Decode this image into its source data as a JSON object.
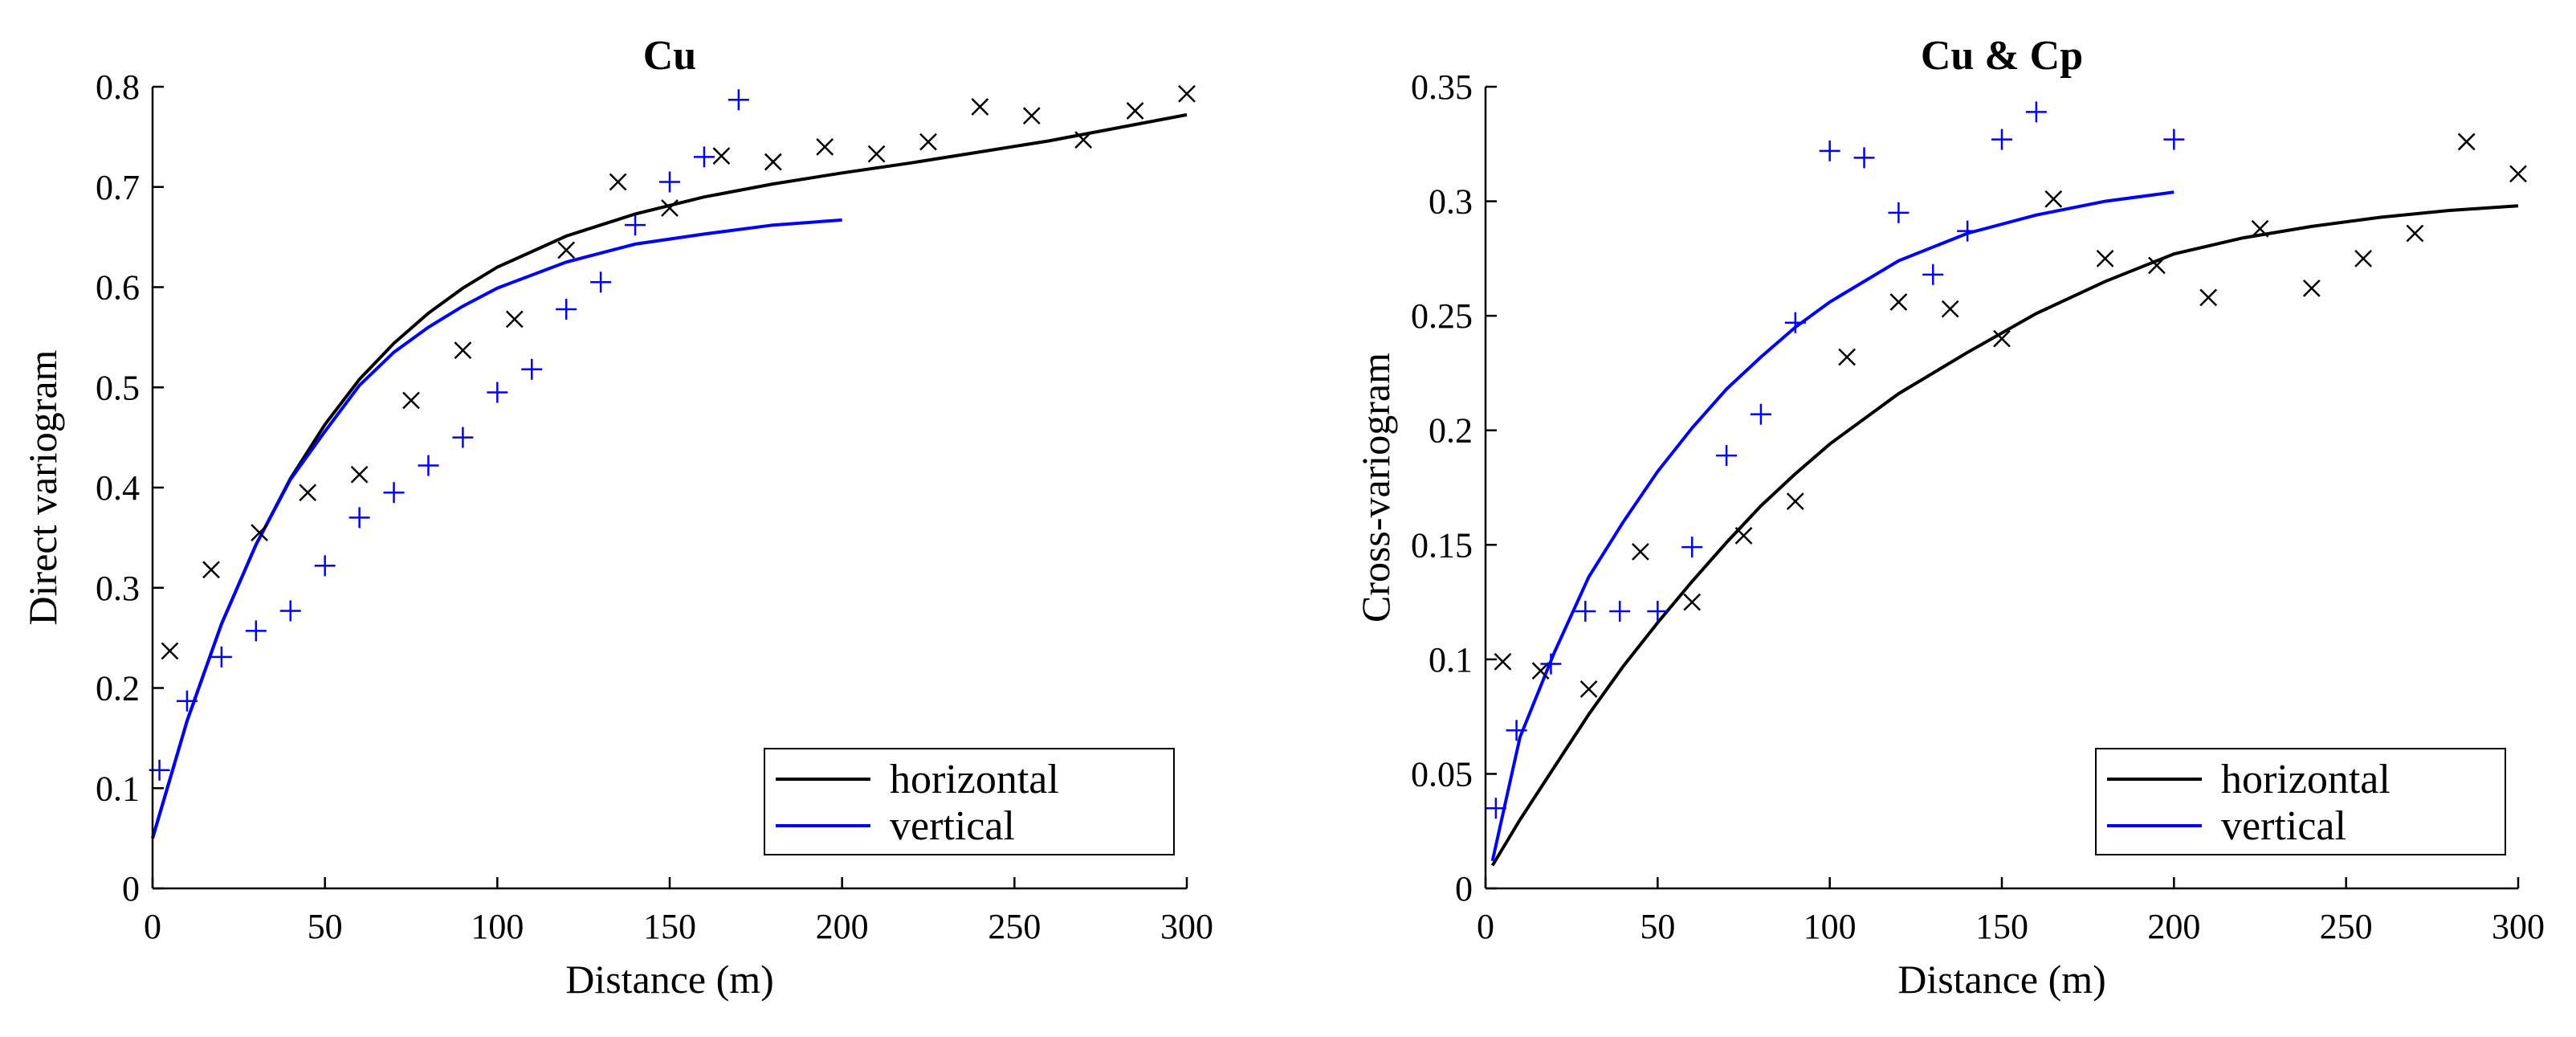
{
  "chart_data": [
    {
      "type": "scatter",
      "title": "Cu",
      "xlabel": "Distance (m)",
      "ylabel": "Direct variogram",
      "xlim": [
        0,
        300
      ],
      "ylim": [
        0,
        0.8
      ],
      "xticks": [
        0,
        50,
        100,
        150,
        200,
        250,
        300
      ],
      "xtick_labels": [
        "0",
        "50",
        "100",
        "150",
        "200",
        "250",
        "300"
      ],
      "yticks": [
        0,
        0.1,
        0.2,
        0.3,
        0.4,
        0.5,
        0.6,
        0.7,
        0.8
      ],
      "ytick_labels": [
        "0",
        "0.1",
        "0.2",
        "0.3",
        "0.4",
        "0.5",
        "0.6",
        "0.7",
        "0.8"
      ],
      "grid": false,
      "legend_position": "bottom-right",
      "colors": {
        "horizontal": "#000000",
        "vertical": "#0000ff"
      },
      "series": [
        {
          "name": "horizontal",
          "kind": "experimental",
          "marker": "x",
          "x": [
            5,
            17,
            31,
            45,
            60,
            75,
            90,
            105,
            120,
            135,
            150,
            165,
            180,
            195,
            210,
            225,
            240,
            255,
            270,
            285,
            300
          ],
          "y": [
            0.237,
            0.318,
            0.355,
            0.395,
            0.413,
            0.487,
            0.537,
            0.568,
            0.637,
            0.705,
            0.679,
            0.731,
            0.725,
            0.74,
            0.733,
            0.745,
            0.78,
            0.771,
            0.747,
            0.776,
            0.793
          ]
        },
        {
          "name": "vertical",
          "kind": "experimental",
          "marker": "+",
          "x": [
            2,
            10,
            20,
            30,
            40,
            50,
            60,
            70,
            80,
            90,
            100,
            110,
            120,
            130,
            140,
            150,
            160,
            170
          ],
          "y": [
            0.118,
            0.187,
            0.231,
            0.257,
            0.277,
            0.322,
            0.37,
            0.395,
            0.422,
            0.45,
            0.495,
            0.518,
            0.578,
            0.605,
            0.662,
            0.705,
            0.73,
            0.787
          ]
        },
        {
          "name": "horizontal",
          "kind": "model",
          "line": "solid",
          "x": [
            0,
            10,
            20,
            30,
            40,
            50,
            60,
            70,
            80,
            90,
            100,
            120,
            140,
            160,
            180,
            200,
            220,
            240,
            260,
            280,
            300
          ],
          "y": [
            0.05,
            0.167,
            0.264,
            0.343,
            0.409,
            0.463,
            0.508,
            0.544,
            0.574,
            0.599,
            0.62,
            0.651,
            0.673,
            0.69,
            0.703,
            0.714,
            0.724,
            0.735,
            0.746,
            0.759,
            0.772
          ]
        },
        {
          "name": "vertical",
          "kind": "model",
          "line": "solid",
          "x": [
            0,
            10,
            20,
            30,
            40,
            50,
            60,
            70,
            80,
            90,
            100,
            120,
            140,
            160,
            180,
            200
          ],
          "y": [
            0.05,
            0.167,
            0.264,
            0.343,
            0.408,
            0.456,
            0.502,
            0.535,
            0.56,
            0.581,
            0.599,
            0.625,
            0.643,
            0.653,
            0.662,
            0.667
          ]
        }
      ],
      "legend": [
        "horizontal",
        "vertical"
      ]
    },
    {
      "type": "scatter",
      "title": "Cu & Cp",
      "xlabel": "Distance (m)",
      "ylabel": "Cross-variogram",
      "xlim": [
        0,
        300
      ],
      "ylim": [
        0,
        0.35
      ],
      "xticks": [
        0,
        50,
        100,
        150,
        200,
        250,
        300
      ],
      "xtick_labels": [
        "0",
        "50",
        "100",
        "150",
        "200",
        "250",
        "300"
      ],
      "yticks": [
        0,
        0.05,
        0.1,
        0.15,
        0.2,
        0.25,
        0.3,
        0.35
      ],
      "ytick_labels": [
        "0",
        "0.05",
        "0.1",
        "0.15",
        "0.2",
        "0.25",
        "0.3",
        "0.35"
      ],
      "grid": false,
      "legend_position": "bottom-right",
      "colors": {
        "horizontal": "#000000",
        "vertical": "#0000ff"
      },
      "series": [
        {
          "name": "horizontal",
          "kind": "experimental",
          "marker": "x",
          "x": [
            5,
            16,
            30,
            45,
            60,
            75,
            90,
            105,
            120,
            135,
            150,
            165,
            180,
            195,
            210,
            225,
            240,
            255,
            270,
            285,
            300
          ],
          "y": [
            0.099,
            0.095,
            0.087,
            0.147,
            0.125,
            0.154,
            0.169,
            0.232,
            0.256,
            0.253,
            0.24,
            0.301,
            0.275,
            0.272,
            0.258,
            0.288,
            0.262,
            0.275,
            0.286,
            0.326,
            0.312
          ]
        },
        {
          "name": "vertical",
          "kind": "experimental",
          "marker": "+",
          "x": [
            3,
            9,
            19,
            29,
            39,
            50,
            60,
            70,
            80,
            90,
            100,
            110,
            120,
            130,
            140,
            150,
            160,
            200
          ],
          "y": [
            0.035,
            0.069,
            0.098,
            0.121,
            0.121,
            0.121,
            0.149,
            0.189,
            0.207,
            0.247,
            0.322,
            0.319,
            0.295,
            0.268,
            0.287,
            0.327,
            0.339,
            0.327
          ]
        },
        {
          "name": "horizontal",
          "kind": "model",
          "line": "solid",
          "x": [
            2,
            10,
            20,
            30,
            40,
            50,
            60,
            70,
            80,
            90,
            100,
            120,
            140,
            160,
            180,
            200,
            220,
            240,
            260,
            280,
            300
          ],
          "y": [
            0.01,
            0.03,
            0.053,
            0.076,
            0.097,
            0.116,
            0.134,
            0.151,
            0.167,
            0.181,
            0.194,
            0.216,
            0.234,
            0.251,
            0.265,
            0.277,
            0.284,
            0.289,
            0.293,
            0.296,
            0.298
          ]
        },
        {
          "name": "vertical",
          "kind": "model",
          "line": "solid",
          "x": [
            2,
            10,
            20,
            30,
            40,
            50,
            60,
            70,
            80,
            90,
            100,
            120,
            140,
            160,
            180,
            200
          ],
          "y": [
            0.012,
            0.066,
            0.103,
            0.136,
            0.16,
            0.182,
            0.201,
            0.218,
            0.232,
            0.245,
            0.256,
            0.274,
            0.286,
            0.294,
            0.3,
            0.304
          ]
        }
      ],
      "legend": [
        "horizontal",
        "vertical"
      ]
    }
  ]
}
